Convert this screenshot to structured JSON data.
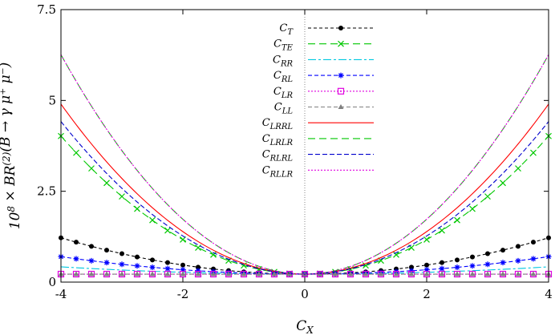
{
  "chart_data": {
    "type": "line",
    "xlabel": "C_X",
    "ylabel": "10^8 × BR^(2)(B → γ μ⁺ μ⁻)",
    "xlim": [
      -4,
      4
    ],
    "ylim": [
      0,
      7.5
    ],
    "x_ticks": [
      "-4",
      "-2",
      "0",
      "2",
      "4"
    ],
    "y_ticks": [
      "0",
      "2.5",
      "5",
      "7.5"
    ],
    "legend_position": "top-center",
    "series": [
      {
        "name": "C_T",
        "color": "#000000",
        "dash": "4,3",
        "marker": "dot",
        "values": [
          0.22,
          0.0625
        ]
      },
      {
        "name": "C_TE",
        "color": "#00c800",
        "dash": "9,5",
        "marker": "cross",
        "values": [
          0.22,
          0.2375
        ]
      },
      {
        "name": "C_RR",
        "color": "#00c8e0",
        "dash": "10,3,3,3",
        "marker": "none",
        "values": [
          0.22,
          0.0125
        ]
      },
      {
        "name": "C_RL",
        "color": "#0000ff",
        "dash": "5,3",
        "marker": "star",
        "values": [
          0.22,
          0.03
        ]
      },
      {
        "name": "C_LR",
        "color": "#e000e0",
        "dash": "2,2",
        "marker": "square",
        "values": [
          0.22,
          0.0
        ]
      },
      {
        "name": "C_LL",
        "color": "#808080",
        "dash": "5,3",
        "marker": "triangle",
        "values": [
          0.22,
          0.0
        ]
      },
      {
        "name": "C_LRRL",
        "color": "#ff0000",
        "dash": "",
        "marker": "none",
        "values": [
          0.22,
          0.2925
        ]
      },
      {
        "name": "C_LRLR",
        "color": "#00c800",
        "dash": "9,5",
        "marker": "none",
        "values": [
          0.22,
          0.3775
        ]
      },
      {
        "name": "C_RLRL",
        "color": "#0000cd",
        "dash": "6,3",
        "marker": "none",
        "values": [
          0.22,
          0.2625
        ]
      },
      {
        "name": "C_RLLR",
        "color": "#e000e0",
        "dash": "2,2",
        "marker": "none",
        "values": [
          0.22,
          0.3775
        ]
      }
    ]
  }
}
